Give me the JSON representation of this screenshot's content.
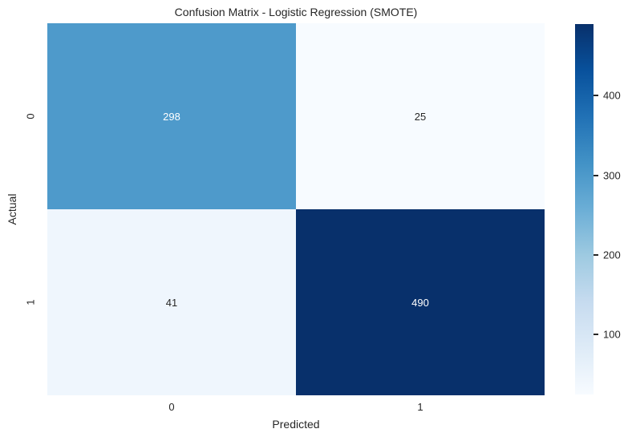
{
  "figure": {
    "background": "#ffffff",
    "text_color": "#262626"
  },
  "chart_data": {
    "type": "heatmap",
    "title": "Confusion Matrix - Logistic Regression (SMOTE)",
    "xlabel": "Predicted",
    "ylabel": "Actual",
    "x_ticklabels": [
      "0",
      "1"
    ],
    "y_ticklabels": [
      "0",
      "1"
    ],
    "matrix": [
      [
        298,
        25
      ],
      [
        41,
        490
      ]
    ],
    "vmin": 25,
    "vmax": 490,
    "colormap": "Blues",
    "colormap_stops": [
      "#f7fbff",
      "#deebf7",
      "#c6dbef",
      "#9ecae1",
      "#6baed6",
      "#4292c6",
      "#2171b5",
      "#08519c",
      "#08306b"
    ],
    "cell_colors": [
      [
        "#4e9acb",
        "#f7fbff"
      ],
      [
        "#eff6fd",
        "#08306b"
      ]
    ],
    "cell_text_colors": [
      [
        "#ffffff",
        "#262626"
      ],
      [
        "#262626",
        "#ffffff"
      ]
    ],
    "colorbar_ticks": [
      100,
      200,
      300,
      400
    ],
    "legend_position": "right-colorbar",
    "grid": false,
    "annotations_on": true
  }
}
